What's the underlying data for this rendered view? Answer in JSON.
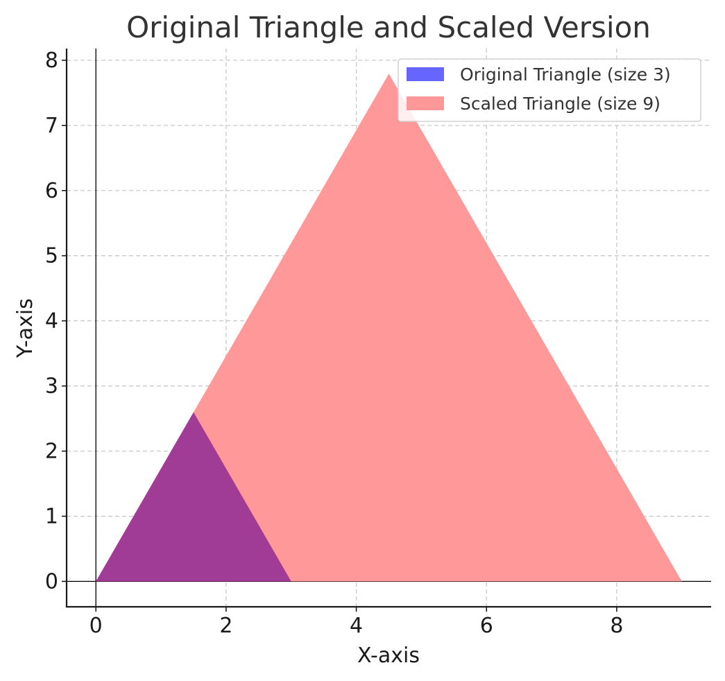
{
  "chart_data": {
    "type": "area",
    "title": "Original Triangle and Scaled Version",
    "xlabel": "X-axis",
    "ylabel": "Y-axis",
    "xlim": [
      -0.45,
      9.45
    ],
    "ylim": [
      -0.39,
      8.18
    ],
    "xticks": [
      0,
      2,
      4,
      6,
      8
    ],
    "yticks": [
      0,
      1,
      2,
      3,
      4,
      5,
      6,
      7,
      8
    ],
    "grid": true,
    "legend_position": "top-right",
    "series": [
      {
        "name": "Original Triangle (size 3)",
        "color": "#6666ff",
        "vertices": [
          [
            0,
            0
          ],
          [
            3,
            0
          ],
          [
            1.5,
            2.598
          ]
        ]
      },
      {
        "name": "Scaled Triangle (size 9)",
        "color": "#ff9999",
        "vertices": [
          [
            0,
            0
          ],
          [
            9,
            0
          ],
          [
            4.5,
            7.794
          ]
        ]
      }
    ],
    "overlap_color": "#a03c96"
  }
}
